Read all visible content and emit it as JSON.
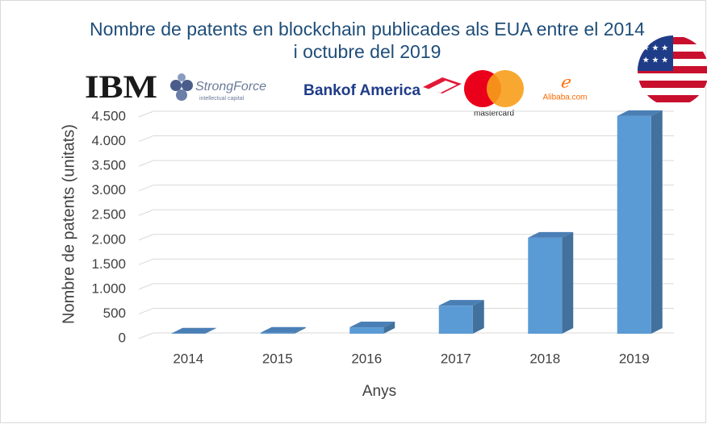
{
  "chart_data": {
    "type": "bar3d",
    "title": "Nombre de patents en blockchain publicades als EUA entre el 2014 i octubre del 2019",
    "x_label": "Anys",
    "y_label": "Nombre de patents (unitats)",
    "logos": [
      "IBM",
      "StrongForce",
      "intellectual capital",
      "Bankof America",
      "mastercard",
      "Alibaba.com"
    ],
    "categories": [
      "2014",
      "2015",
      "2016",
      "2017",
      "2018",
      "2019"
    ],
    "values": [
      5,
      20,
      130,
      570,
      1950,
      4420
    ],
    "color": "#5b9bd5",
    "ylim": [
      0,
      4500
    ],
    "yticks": [
      0,
      500,
      {
        "value": 1000,
        "label": "1.000"
      },
      {
        "value": 1500,
        "label": "1.500"
      },
      {
        "value": 2000,
        "label": "2.000"
      },
      {
        "value": 2500,
        "label": "2.500"
      },
      {
        "value": 3000,
        "label": "3.000"
      },
      {
        "value": 3500,
        "label": "3.500"
      },
      {
        "value": 4000,
        "label": "4.000"
      },
      {
        "value": 4500,
        "label": "4.500"
      }
    ],
    "grid": true
  }
}
